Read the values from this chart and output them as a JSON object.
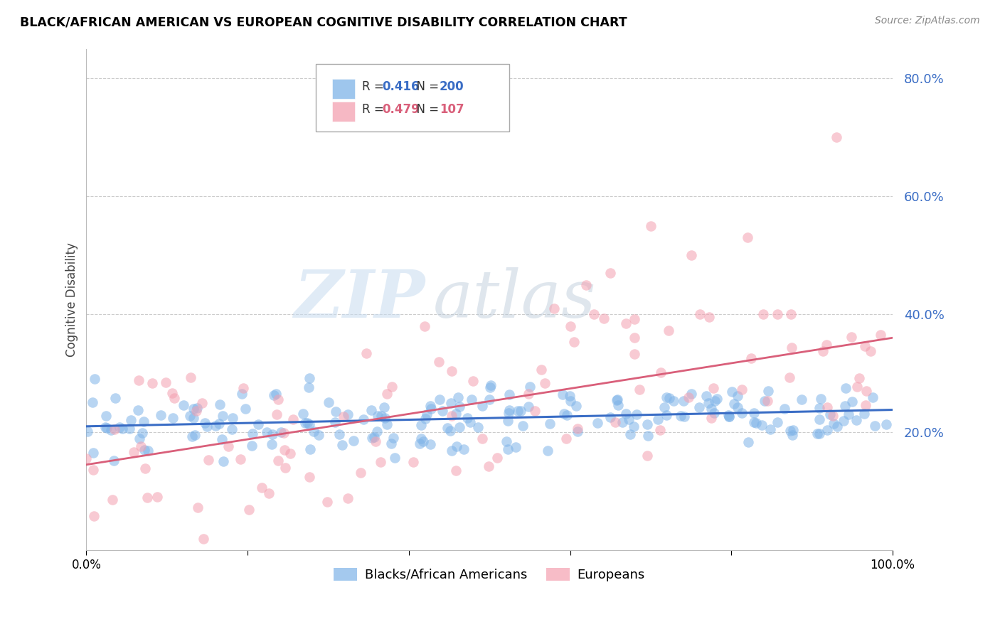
{
  "title": "BLACK/AFRICAN AMERICAN VS EUROPEAN COGNITIVE DISABILITY CORRELATION CHART",
  "source": "Source: ZipAtlas.com",
  "ylabel": "Cognitive Disability",
  "ytick_labels": [
    "20.0%",
    "40.0%",
    "60.0%",
    "80.0%"
  ],
  "ytick_values": [
    0.2,
    0.4,
    0.6,
    0.8
  ],
  "xlim": [
    0.0,
    1.0
  ],
  "ylim": [
    0.0,
    0.85
  ],
  "blue_R": "0.416",
  "blue_N": "200",
  "pink_R": "0.479",
  "pink_N": "107",
  "blue_color": "#7EB3E8",
  "pink_color": "#F4A0B0",
  "blue_line_color": "#3A6DC5",
  "pink_line_color": "#D95F7A",
  "legend_label_blue": "Blacks/African Americans",
  "legend_label_pink": "Europeans",
  "watermark_zip": "ZIP",
  "watermark_atlas": "atlas",
  "blue_slope": 0.028,
  "blue_intercept": 0.21,
  "pink_slope": 0.215,
  "pink_intercept": 0.145
}
